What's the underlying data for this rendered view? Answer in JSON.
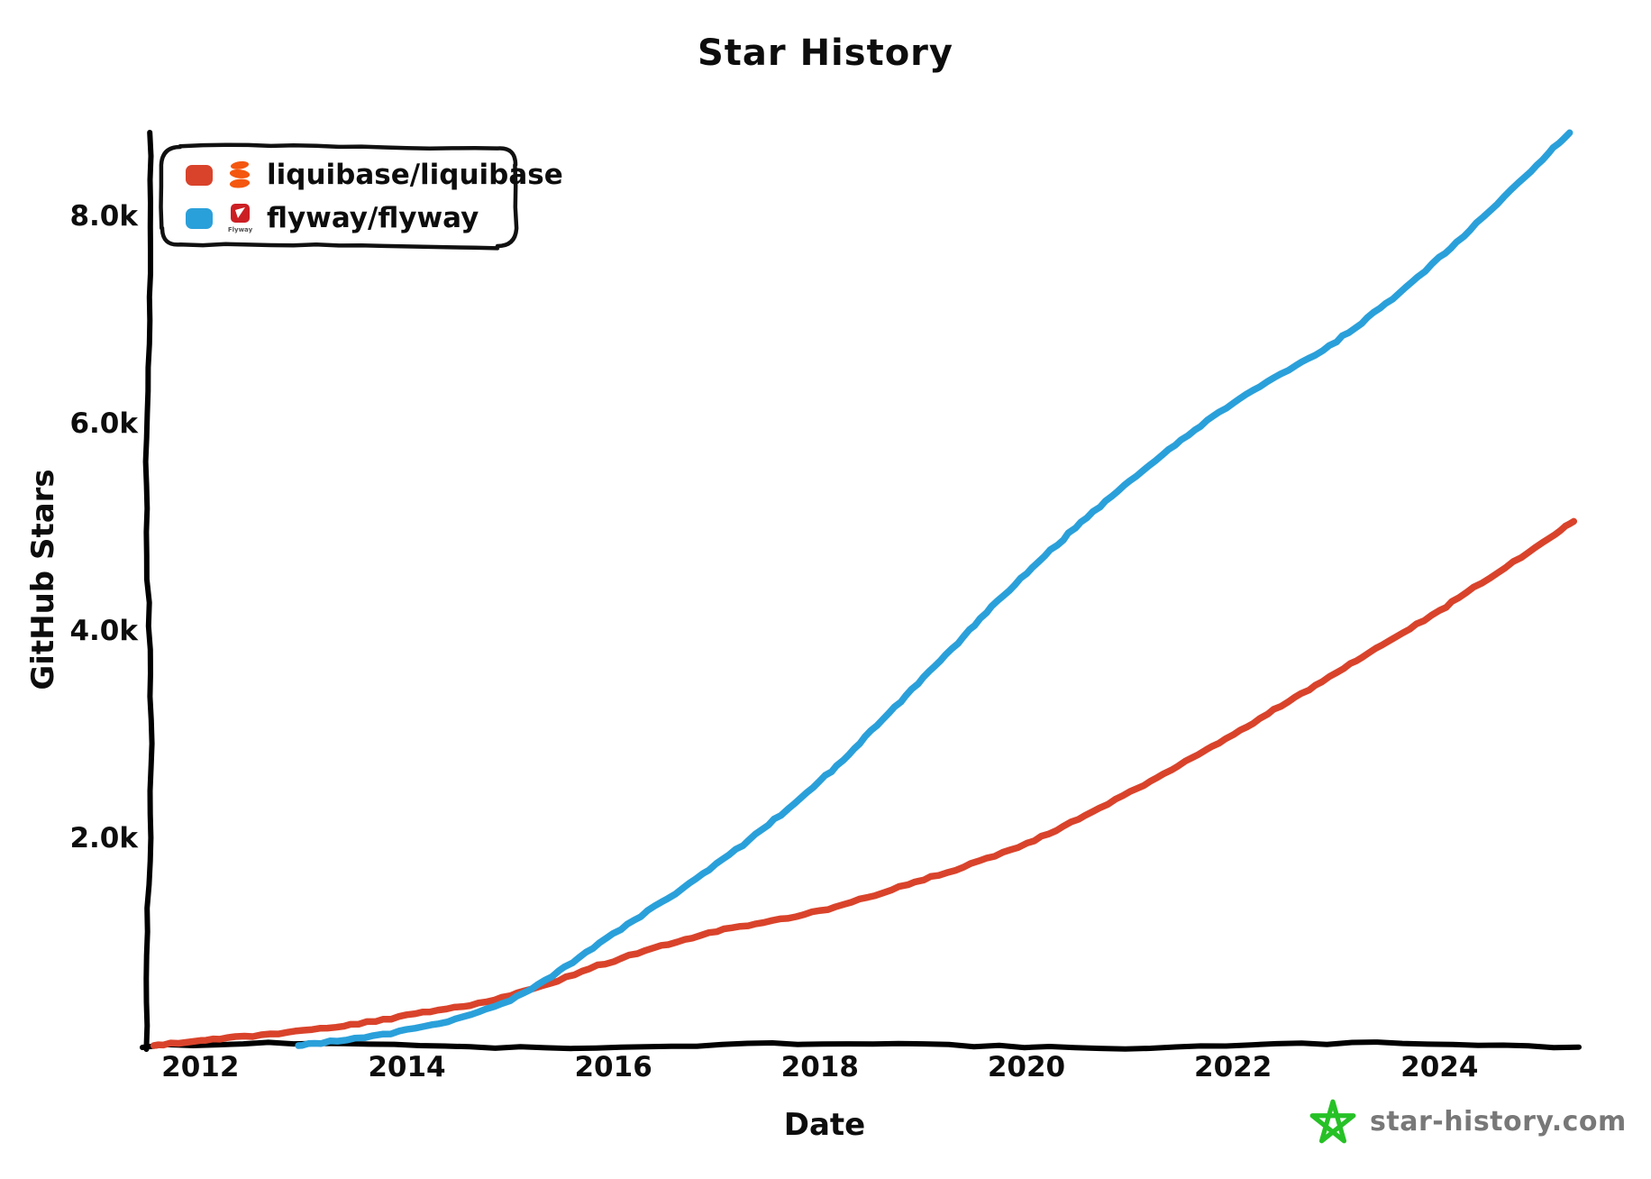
{
  "chart_data": {
    "type": "line",
    "title": "Star History",
    "xlabel": "Date",
    "ylabel": "GitHub Stars",
    "x_range": [
      2011.5,
      2025.35
    ],
    "y_range": [
      0,
      8830
    ],
    "grid": false,
    "legend_position": "top-left",
    "x_ticks": [
      {
        "year": 2012,
        "label": "2012"
      },
      {
        "year": 2014,
        "label": "2014"
      },
      {
        "year": 2016,
        "label": "2016"
      },
      {
        "year": 2018,
        "label": "2018"
      },
      {
        "year": 2020,
        "label": "2020"
      },
      {
        "year": 2022,
        "label": "2022"
      },
      {
        "year": 2024,
        "label": "2024"
      }
    ],
    "y_ticks": [
      {
        "value": 2000,
        "label": "2.0k"
      },
      {
        "value": 4000,
        "label": "4.0k"
      },
      {
        "value": 6000,
        "label": "6.0k"
      },
      {
        "value": 8000,
        "label": "8.0k"
      }
    ],
    "series": [
      {
        "name": "liquibase/liquibase",
        "color": "#d9432b",
        "points": [
          [
            2011.55,
            0
          ],
          [
            2012,
            50
          ],
          [
            2013,
            140
          ],
          [
            2014,
            290
          ],
          [
            2015,
            480
          ],
          [
            2016,
            820
          ],
          [
            2017,
            1100
          ],
          [
            2018,
            1300
          ],
          [
            2019,
            1600
          ],
          [
            2020,
            1950
          ],
          [
            2021,
            2450
          ],
          [
            2022,
            3000
          ],
          [
            2023,
            3600
          ],
          [
            2024,
            4200
          ],
          [
            2025.3,
            5060
          ]
        ]
      },
      {
        "name": "flyway/flyway",
        "color": "#2aa0da",
        "points": [
          [
            2012.95,
            0
          ],
          [
            2014,
            150
          ],
          [
            2015,
            440
          ],
          [
            2016,
            1080
          ],
          [
            2017,
            1750
          ],
          [
            2018,
            2550
          ],
          [
            2019,
            3550
          ],
          [
            2020,
            4560
          ],
          [
            2021,
            5450
          ],
          [
            2022,
            6200
          ],
          [
            2023,
            6800
          ],
          [
            2024,
            7600
          ],
          [
            2025.26,
            8810
          ]
        ]
      }
    ]
  },
  "logos": {
    "liquibase_color": "#f4570f",
    "flyway_square_color": "#cc1f24",
    "flyway_text": "Flyway"
  },
  "watermark": {
    "text": "star-history.com",
    "text_color": "#787878",
    "star_color": "#26c126"
  },
  "colors": {
    "axis": "#000000",
    "legend_border": "#111111"
  }
}
